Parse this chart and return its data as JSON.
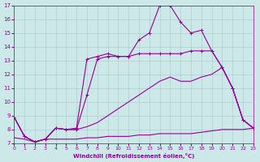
{
  "xlabel": "Windchill (Refroidissement éolien,°C)",
  "background_color": "#cce8e8",
  "line_color": "#990099",
  "xlim": [
    0,
    23
  ],
  "ylim": [
    7,
    17
  ],
  "xticks": [
    0,
    1,
    2,
    3,
    4,
    5,
    6,
    7,
    8,
    9,
    10,
    11,
    12,
    13,
    14,
    15,
    16,
    17,
    18,
    19,
    20,
    21,
    22,
    23
  ],
  "yticks": [
    7,
    8,
    9,
    10,
    11,
    12,
    13,
    14,
    15,
    16,
    17
  ],
  "series": [
    {
      "x": [
        0,
        1,
        2,
        3,
        4,
        5,
        6,
        7,
        8,
        9,
        10,
        11,
        12,
        13,
        14,
        15,
        16,
        17,
        18,
        19,
        20,
        21,
        22,
        23
      ],
      "y": [
        7.4,
        7.3,
        7.1,
        7.3,
        7.3,
        7.3,
        7.3,
        7.4,
        7.4,
        7.5,
        7.5,
        7.5,
        7.6,
        7.6,
        7.7,
        7.7,
        7.7,
        7.7,
        7.8,
        7.9,
        8.0,
        8.0,
        8.0,
        8.1
      ],
      "marker": null,
      "lw": 0.8
    },
    {
      "x": [
        0,
        1,
        2,
        3,
        4,
        5,
        6,
        7,
        8,
        9,
        10,
        11,
        12,
        13,
        14,
        15,
        16,
        17,
        18,
        19,
        20,
        21,
        22,
        23
      ],
      "y": [
        8.9,
        7.5,
        7.1,
        7.3,
        8.1,
        8.0,
        8.0,
        8.2,
        8.5,
        9.0,
        9.5,
        10.0,
        10.5,
        11.0,
        11.5,
        11.8,
        11.5,
        11.5,
        11.8,
        12.0,
        12.5,
        11.0,
        8.7,
        8.1
      ],
      "marker": null,
      "lw": 0.8
    },
    {
      "x": [
        0,
        1,
        2,
        3,
        4,
        5,
        6,
        7,
        8,
        9,
        10,
        11,
        12,
        13,
        14,
        15,
        16,
        17,
        18,
        19,
        20,
        21,
        22,
        23
      ],
      "y": [
        8.9,
        7.5,
        7.1,
        7.3,
        8.1,
        8.0,
        8.0,
        10.5,
        13.1,
        13.3,
        13.3,
        13.3,
        13.5,
        13.5,
        13.5,
        13.5,
        13.5,
        13.7,
        13.7,
        13.7,
        12.5,
        11.0,
        8.7,
        8.1
      ],
      "marker": "+",
      "lw": 0.8
    },
    {
      "x": [
        0,
        1,
        2,
        3,
        4,
        5,
        6,
        7,
        8,
        9,
        10,
        11,
        12,
        13,
        14,
        15,
        16,
        17,
        18,
        19,
        20,
        21,
        22,
        23
      ],
      "y": [
        8.9,
        7.5,
        7.1,
        7.3,
        8.1,
        8.0,
        8.1,
        13.1,
        13.3,
        13.5,
        13.3,
        13.3,
        14.5,
        15.0,
        17.0,
        17.0,
        15.8,
        15.0,
        15.2,
        13.7,
        12.5,
        11.0,
        8.7,
        8.1
      ],
      "marker": "+",
      "lw": 0.8
    }
  ]
}
